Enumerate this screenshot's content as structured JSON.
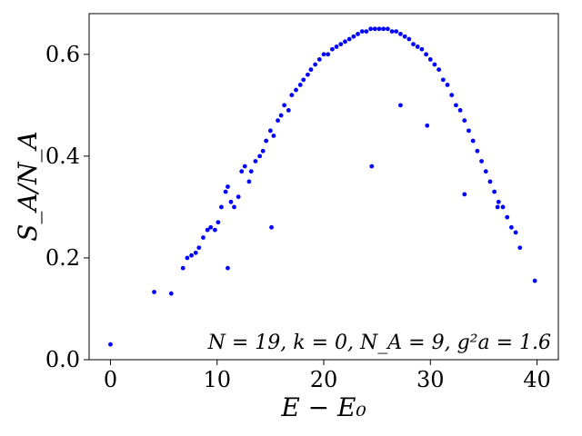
{
  "chart_data": {
    "type": "scatter",
    "xlabel": "E − E₀",
    "ylabel": "S_A/N_A",
    "xlim": [
      -2,
      42
    ],
    "ylim": [
      0,
      0.68
    ],
    "xticks": [
      0,
      10,
      20,
      30,
      40
    ],
    "yticks": [
      0.0,
      0.2,
      0.4,
      0.6
    ],
    "xtick_labels": [
      "0",
      "10",
      "20",
      "30",
      "40"
    ],
    "ytick_labels": [
      "0.0",
      "0.2",
      "0.4",
      "0.6"
    ],
    "annotation": "N = 19,  k = 0,  N_A = 9,  g²a = 1.6",
    "grid": false,
    "legend": "none",
    "point_color": "#0000ff",
    "series": [
      {
        "values_x": [
          0.0,
          4.1,
          5.7,
          6.8,
          7.2,
          7.6,
          8.0,
          8.3,
          8.7,
          9.1,
          9.4,
          9.8,
          10.1,
          10.4,
          10.8,
          11.0,
          11.3,
          11.6,
          12.0,
          12.3,
          12.6,
          13.0,
          13.2,
          13.6,
          14.0,
          14.3,
          14.6,
          15.0,
          15.3,
          15.7,
          16.0,
          16.3,
          16.7,
          17.0,
          17.4,
          17.8,
          18.1,
          18.5,
          18.8,
          19.2,
          19.6,
          20.0,
          20.4,
          20.8,
          21.2,
          21.6,
          22.0,
          22.4,
          22.8,
          23.2,
          23.6,
          24.0,
          24.4,
          24.8,
          25.2,
          25.6,
          26.0,
          26.4,
          26.8,
          27.2,
          27.6,
          28.0,
          28.4,
          28.8,
          29.2,
          29.6,
          30.0,
          30.4,
          30.8,
          31.2,
          31.6,
          32.0,
          32.4,
          32.8,
          33.2,
          33.6,
          34.0,
          34.4,
          34.8,
          35.2,
          35.6,
          36.0,
          36.4,
          36.8,
          37.2,
          37.6,
          38.0,
          38.4,
          39.8,
          24.5,
          29.7,
          27.2,
          11.0,
          33.2,
          15.1,
          36.3
        ],
        "values_y": [
          0.03,
          0.133,
          0.13,
          0.18,
          0.2,
          0.205,
          0.21,
          0.22,
          0.24,
          0.255,
          0.26,
          0.255,
          0.27,
          0.3,
          0.33,
          0.34,
          0.31,
          0.3,
          0.32,
          0.37,
          0.38,
          0.35,
          0.37,
          0.39,
          0.4,
          0.41,
          0.43,
          0.45,
          0.44,
          0.47,
          0.48,
          0.5,
          0.49,
          0.52,
          0.53,
          0.54,
          0.55,
          0.56,
          0.57,
          0.58,
          0.59,
          0.6,
          0.6,
          0.61,
          0.615,
          0.62,
          0.625,
          0.63,
          0.635,
          0.64,
          0.645,
          0.645,
          0.65,
          0.65,
          0.65,
          0.65,
          0.65,
          0.645,
          0.645,
          0.64,
          0.635,
          0.63,
          0.62,
          0.615,
          0.61,
          0.6,
          0.59,
          0.58,
          0.57,
          0.55,
          0.54,
          0.52,
          0.5,
          0.49,
          0.47,
          0.45,
          0.43,
          0.41,
          0.39,
          0.37,
          0.35,
          0.33,
          0.31,
          0.3,
          0.28,
          0.26,
          0.25,
          0.22,
          0.155,
          0.38,
          0.46,
          0.5,
          0.18,
          0.325,
          0.26,
          0.3
        ]
      }
    ]
  }
}
